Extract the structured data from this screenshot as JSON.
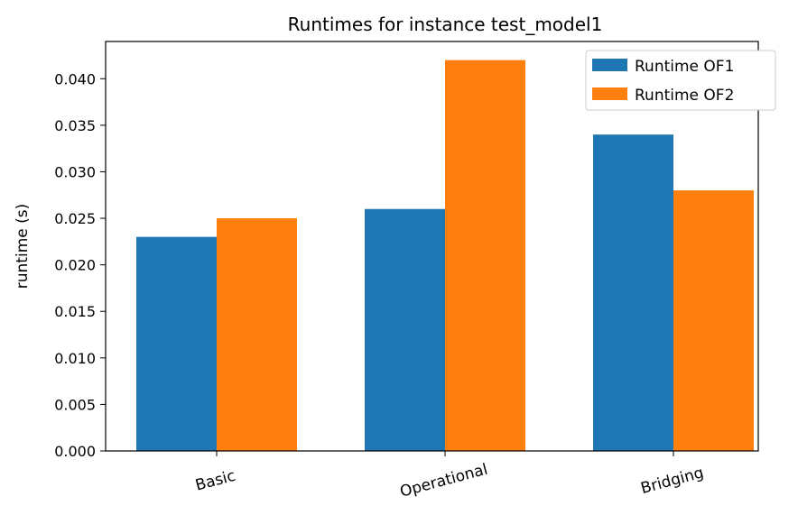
{
  "chart_data": {
    "type": "bar",
    "title": "Runtimes for instance test_model1",
    "xlabel": "",
    "ylabel": "runtime (s)",
    "categories": [
      "Basic",
      "Operational",
      "Bridging"
    ],
    "series": [
      {
        "name": "Runtime OF1",
        "color": "#1f77b4",
        "values": [
          0.023,
          0.026,
          0.034
        ]
      },
      {
        "name": "Runtime OF2",
        "color": "#ff7f0e",
        "values": [
          0.025,
          0.042,
          0.028
        ]
      }
    ],
    "ylim": [
      0,
      0.044
    ],
    "yticks": [
      "0.000",
      "0.005",
      "0.010",
      "0.015",
      "0.020",
      "0.025",
      "0.030",
      "0.035",
      "0.040"
    ],
    "grid": false,
    "legend_position": "top-right"
  }
}
